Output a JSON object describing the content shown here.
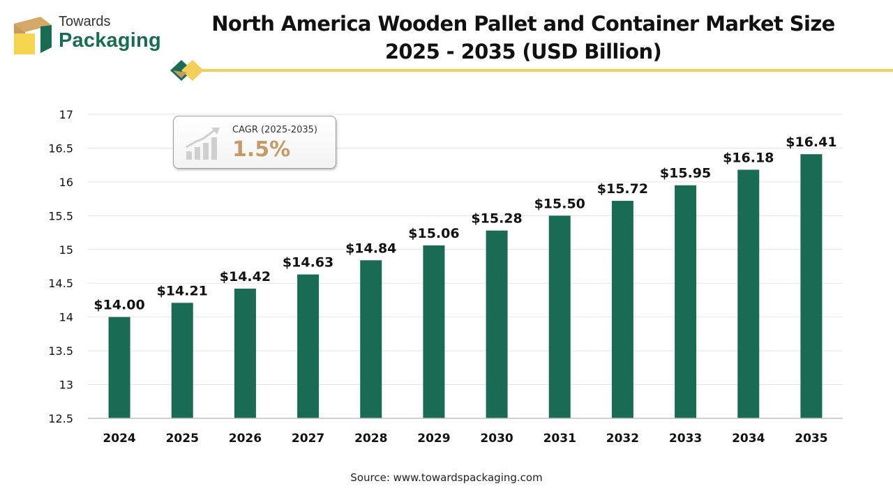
{
  "brand": {
    "line1": "Towards",
    "line2": "Packaging"
  },
  "title": {
    "line1": "North America Wooden Pallet and Container Market Size",
    "line2": "2025 - 2035 (USD Billion)"
  },
  "cagr": {
    "label": "CAGR (2025-2035)",
    "value": "1.5%"
  },
  "source": "Source: www.towardspackaging.com",
  "colors": {
    "bar": "#1a6b53",
    "accent_gold": "#f2cf5b",
    "cagr_text": "#c49a66"
  },
  "chart_data": {
    "type": "bar",
    "categories": [
      "2024",
      "2025",
      "2026",
      "2027",
      "2028",
      "2029",
      "2030",
      "2031",
      "2032",
      "2033",
      "2034",
      "2035"
    ],
    "values": [
      14.0,
      14.21,
      14.42,
      14.63,
      14.84,
      15.06,
      15.28,
      15.5,
      15.72,
      15.95,
      16.18,
      16.41
    ],
    "data_labels": [
      "$14.00",
      "$14.21",
      "$14.42",
      "$14.63",
      "$14.84",
      "$15.06",
      "$15.28",
      "$15.50",
      "$15.72",
      "$15.95",
      "$16.18",
      "$16.41"
    ],
    "ylim": [
      12.5,
      17
    ],
    "yticks": [
      "12.5",
      "13",
      "13.5",
      "14",
      "14.5",
      "15",
      "15.5",
      "16",
      "16.5",
      "17"
    ],
    "grid": true,
    "xlabel": "",
    "ylabel": ""
  }
}
